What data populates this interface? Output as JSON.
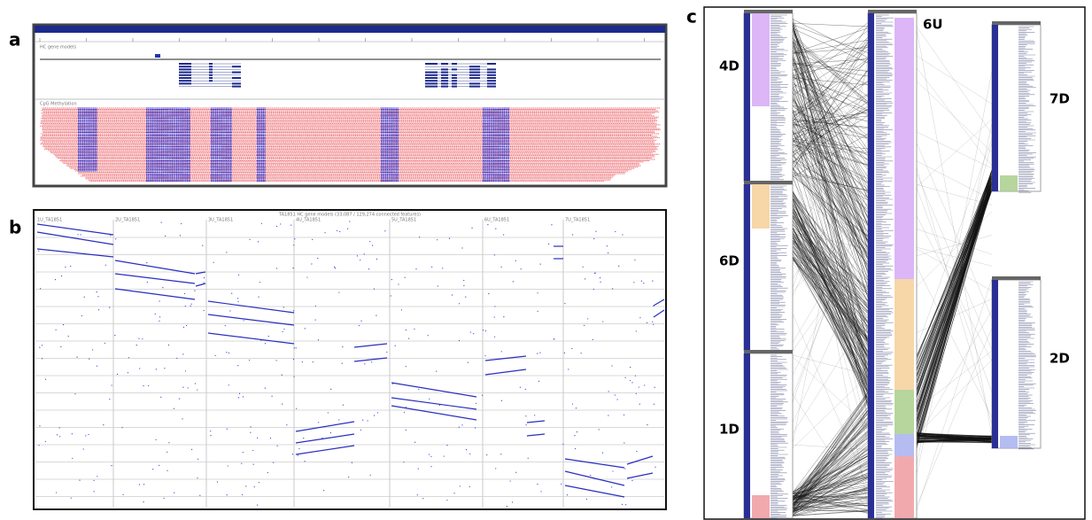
{
  "panels": {
    "a": {
      "label": "a",
      "tracks": [
        "HC gene models",
        "CpG Methylation"
      ]
    },
    "b": {
      "label": "b",
      "title": "TA1851 HC gene models (33,087 / 129,274 connected features)",
      "columns": [
        "1U_TA1851",
        "2U_TA1851",
        "3U_TA1851",
        "4U_TA1851",
        "5U_TA1851",
        "6U_TA1851",
        "7U_TA1851"
      ]
    },
    "c": {
      "label": "c",
      "chromosomes": [
        "4D",
        "6D",
        "1D",
        "6U",
        "7D",
        "2D"
      ]
    }
  }
}
